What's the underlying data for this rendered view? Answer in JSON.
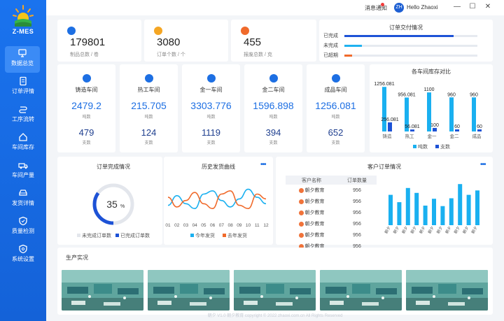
{
  "brand": {
    "name": "Z-MES"
  },
  "sidebar": {
    "items": [
      {
        "label": "数据总览",
        "icon": "monitor-icon"
      },
      {
        "label": "订单评情",
        "icon": "document-icon"
      },
      {
        "label": "工序流转",
        "icon": "flow-icon"
      },
      {
        "label": "车间库存",
        "icon": "home-icon"
      },
      {
        "label": "车间产量",
        "icon": "truck-icon"
      },
      {
        "label": "发货详情",
        "icon": "car-icon"
      },
      {
        "label": "质量检测",
        "icon": "shield-icon"
      },
      {
        "label": "系统设置",
        "icon": "settings-shield-icon"
      }
    ]
  },
  "header": {
    "message": "消息通知",
    "avatar_text": "ZH",
    "user": "Hello Zhaoxi",
    "min": "—",
    "max": "☐",
    "close": "✕"
  },
  "stats": [
    {
      "value": "179801",
      "label": "制品总数 / 卷",
      "color": "#1d6fe3"
    },
    {
      "value": "3080",
      "label": "订单个数 / 个",
      "color": "#f5a623"
    },
    {
      "value": "455",
      "label": "报废总数 / 克",
      "color": "#f06a2b"
    }
  ],
  "delivery": {
    "title": "订单交付情况",
    "rows": [
      {
        "label": "已完成",
        "ratio": 0.82,
        "color": "#1d52d6"
      },
      {
        "label": "未完成",
        "ratio": 0.13,
        "color": "#1fb2f0"
      },
      {
        "label": "已超期",
        "ratio": 0.06,
        "color": "#f06a2b"
      }
    ]
  },
  "workshops": [
    {
      "name": "铸造车间",
      "tons": "2479.2",
      "tons_label": "吨数",
      "count": "479",
      "count_label": "支数"
    },
    {
      "name": "热工车间",
      "tons": "215.705",
      "tons_label": "吨数",
      "count": "124",
      "count_label": "支数"
    },
    {
      "name": "金一车间",
      "tons": "3303.776",
      "tons_label": "吨数",
      "count": "1119",
      "count_label": "支数"
    },
    {
      "name": "金二车间",
      "tons": "1596.898",
      "tons_label": "吨数",
      "count": "394",
      "count_label": "支数"
    },
    {
      "name": "成品车间",
      "tons": "1256.081",
      "tons_label": "吨数",
      "count": "652",
      "count_label": "支数"
    }
  ],
  "chart_data": [
    {
      "type": "bar",
      "title": "各车间库存对比",
      "categories": [
        "铸造",
        "热工",
        "金一",
        "金二",
        "成品"
      ],
      "series": [
        {
          "name": "吨数",
          "values": [
            1256.081,
            956.081,
            1100,
            960,
            960
          ],
          "labels": [
            "1256.081",
            "956.081",
            "1100",
            "960",
            "960"
          ],
          "color": "#1ab0f0"
        },
        {
          "name": "支数",
          "values": [
            256.081,
            56.081,
            100,
            60,
            60
          ],
          "labels": [
            "256.081",
            "56.081",
            "100",
            "60",
            "60"
          ],
          "color": "#1d52d6"
        }
      ],
      "ylim": [
        0,
        1300
      ],
      "legend": "bottom"
    },
    {
      "type": "pie",
      "title": "订单完成情况",
      "center_label": "35",
      "center_unit": "%",
      "slices": [
        {
          "name": "未完成订单数",
          "value": 65,
          "color": "#e3e6ec"
        },
        {
          "name": "已完成订单数",
          "value": 35,
          "color": "#1d52d6"
        }
      ],
      "legend": "bottom"
    },
    {
      "type": "line",
      "title": "历史发货曲线",
      "categories": [
        "01",
        "02",
        "03",
        "04",
        "05",
        "06",
        "07",
        "08",
        "09",
        "10",
        "11",
        "12"
      ],
      "series": [
        {
          "name": "今年发货",
          "values": [
            40,
            70,
            45,
            30,
            75,
            85,
            55,
            35,
            60,
            90,
            65,
            45
          ],
          "color": "#1ab0f0"
        },
        {
          "name": "去年发货",
          "values": [
            65,
            35,
            55,
            80,
            45,
            30,
            75,
            85,
            40,
            30,
            75,
            60
          ],
          "color": "#f06a2b"
        }
      ],
      "ylim": [
        0,
        100
      ],
      "legend": "bottom"
    },
    {
      "type": "bar",
      "title": "客户订单情况",
      "categories": [
        "朝夕",
        "朝夕",
        "朝夕",
        "朝夕",
        "朝夕",
        "朝夕",
        "朝夕",
        "朝夕",
        "朝夕",
        "朝夕",
        "朝夕"
      ],
      "series": [
        {
          "name": "订单",
          "values": [
            62,
            47,
            76,
            66,
            40,
            54,
            39,
            55,
            84,
            62,
            71
          ],
          "color": "#1ab0f0"
        }
      ],
      "ylim": [
        0,
        100
      ]
    }
  ],
  "order_panel": {
    "more": "•••"
  },
  "history_panel": {
    "more": "•••"
  },
  "customer_panel": {
    "more": "•••",
    "table": {
      "headers": [
        "客户名称",
        "订单数量"
      ],
      "rows": [
        {
          "name": "朝夕教育",
          "count": "956"
        },
        {
          "name": "朝夕教育",
          "count": "956"
        },
        {
          "name": "朝夕教育",
          "count": "956"
        },
        {
          "name": "朝夕教育",
          "count": "956"
        },
        {
          "name": "朝夕教育",
          "count": "956"
        },
        {
          "name": "朝夕教育",
          "count": "956"
        }
      ]
    }
  },
  "production": {
    "title": "生产实况",
    "photos": [
      "workshop-photo-1",
      "workshop-photo-2",
      "workshop-photo-3",
      "workshop-photo-4",
      "workshop-photo-5"
    ]
  },
  "footer": {
    "text": "朝夕 V1.0 朝夕教育 copyright © 2022 zhaoxi.com.cn All Rights Reserved"
  }
}
